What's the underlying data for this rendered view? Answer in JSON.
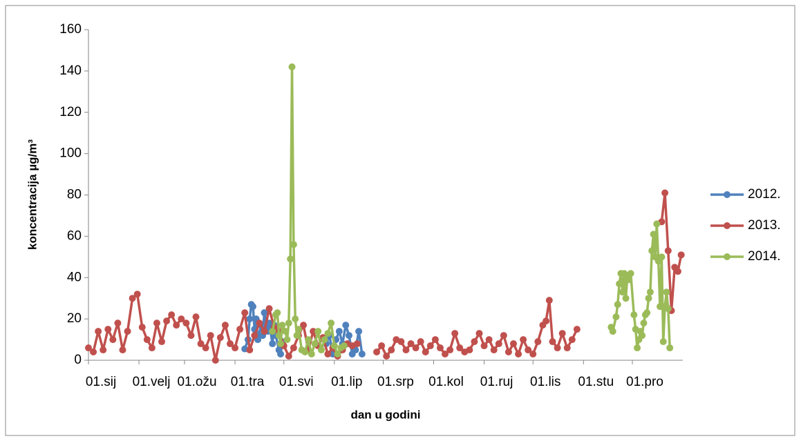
{
  "chart_data": {
    "type": "line",
    "x_label": "dan u godini",
    "y_label": "koncentracija µg/m³",
    "xlim": [
      1,
      366
    ],
    "ylim": [
      0,
      160
    ],
    "yticks": [
      0,
      20,
      40,
      60,
      80,
      100,
      120,
      140,
      160
    ],
    "xticks": [
      {
        "value": 1,
        "label": "01.sij"
      },
      {
        "value": 32,
        "label": "01.velj"
      },
      {
        "value": 60,
        "label": "01.ožu"
      },
      {
        "value": 91,
        "label": "01.tra"
      },
      {
        "value": 121,
        "label": "01.svi"
      },
      {
        "value": 152,
        "label": "01.lip"
      },
      {
        "value": 182,
        "label": "01.srp"
      },
      {
        "value": 213,
        "label": "01.kol"
      },
      {
        "value": 244,
        "label": "01.ruj"
      },
      {
        "value": 274,
        "label": "01.lis"
      },
      {
        "value": 305,
        "label": "01.stu"
      },
      {
        "value": 335,
        "label": "01.pro"
      }
    ],
    "legend": "right",
    "series": [
      {
        "name": "2012.",
        "color": "#4f81bd",
        "x": [
          97,
          99,
          100,
          101,
          102,
          103,
          104,
          105,
          107,
          108,
          109,
          111,
          112,
          114,
          115,
          116,
          118,
          119,
          120,
          135,
          147,
          149,
          151,
          153,
          155,
          157,
          159,
          161,
          163,
          165,
          167,
          169
        ],
        "values": [
          5.5,
          10,
          20,
          27,
          26,
          15,
          20,
          10,
          17,
          12,
          23,
          14,
          18,
          8,
          17,
          12,
          5,
          3,
          9,
          null,
          8,
          12,
          3,
          10,
          14,
          8,
          17,
          12,
          3,
          5,
          14,
          3
        ]
      },
      {
        "name": "2013.",
        "color": "#c0504d",
        "x": [
          1,
          4,
          7,
          10,
          13,
          16,
          19,
          22,
          25,
          28,
          31,
          34,
          37,
          40,
          43,
          46,
          49,
          52,
          55,
          58,
          61,
          64,
          67,
          70,
          73,
          76,
          79,
          82,
          85,
          88,
          91,
          94,
          97,
          100,
          103,
          106,
          109,
          112,
          115,
          118,
          121,
          124,
          127,
          130,
          133,
          136,
          139,
          142,
          145,
          148,
          151,
          154,
          157,
          160,
          163,
          166,
          172,
          178,
          181,
          184,
          187,
          190,
          193,
          196,
          199,
          202,
          205,
          208,
          211,
          214,
          217,
          220,
          223,
          226,
          229,
          232,
          235,
          238,
          241,
          244,
          247,
          250,
          253,
          256,
          259,
          262,
          265,
          268,
          271,
          274,
          277,
          280,
          282,
          284,
          286,
          289,
          292,
          295,
          298,
          301,
          330,
          353,
          355,
          357,
          359,
          361,
          363,
          365
        ],
        "values": [
          6,
          4,
          14,
          5,
          15,
          10,
          18,
          5,
          14,
          30,
          32,
          16,
          10,
          6,
          18,
          9,
          19,
          22,
          17,
          20,
          18,
          12,
          21,
          8,
          6,
          12,
          0,
          11,
          17,
          8,
          6,
          15,
          23,
          5,
          12,
          18,
          14,
          25,
          16,
          14,
          7,
          2,
          6,
          12,
          17,
          5,
          14,
          7,
          11,
          3,
          6,
          2,
          5,
          8,
          7,
          8,
          null,
          4,
          7,
          2,
          5,
          10,
          9,
          5,
          8,
          6,
          9,
          4,
          7,
          10,
          6,
          3,
          5,
          13,
          6,
          4,
          5,
          9,
          13,
          7,
          10,
          5,
          8,
          12,
          4,
          8,
          3,
          10,
          5,
          3,
          9,
          17,
          19,
          29,
          9,
          6,
          13,
          6,
          10,
          15,
          null,
          67,
          81,
          53,
          24,
          45,
          43,
          51
        ]
      },
      {
        "name": "2014.",
        "color": "#9bbb59",
        "x": [
          114,
          116,
          117,
          118,
          119,
          120,
          122,
          123,
          124,
          125,
          126,
          127,
          128,
          129,
          130,
          132,
          134,
          136,
          138,
          140,
          142,
          144,
          146,
          148,
          150,
          152,
          154,
          156,
          158,
          240,
          322,
          323,
          325,
          326,
          327,
          328,
          329,
          330,
          331,
          332,
          333,
          334,
          336,
          337,
          338,
          339,
          340,
          341,
          342,
          343,
          344,
          345,
          346,
          347,
          348,
          349,
          350,
          351,
          352,
          353,
          354,
          355,
          356,
          357,
          358
        ],
        "values": [
          14,
          22,
          23,
          12,
          8,
          17,
          14,
          10,
          18,
          49,
          142,
          56,
          20,
          12,
          15,
          5,
          4,
          10,
          3,
          8,
          14,
          5,
          10,
          13,
          18,
          7,
          3,
          6,
          7,
          null,
          16,
          14,
          21,
          27,
          37,
          42,
          33,
          42,
          30,
          41,
          39,
          42,
          22,
          15,
          6,
          10,
          14,
          12,
          18,
          22,
          23,
          30,
          33,
          53,
          61,
          50,
          66,
          48,
          26,
          50,
          9,
          26,
          33,
          25,
          6
        ]
      }
    ]
  }
}
